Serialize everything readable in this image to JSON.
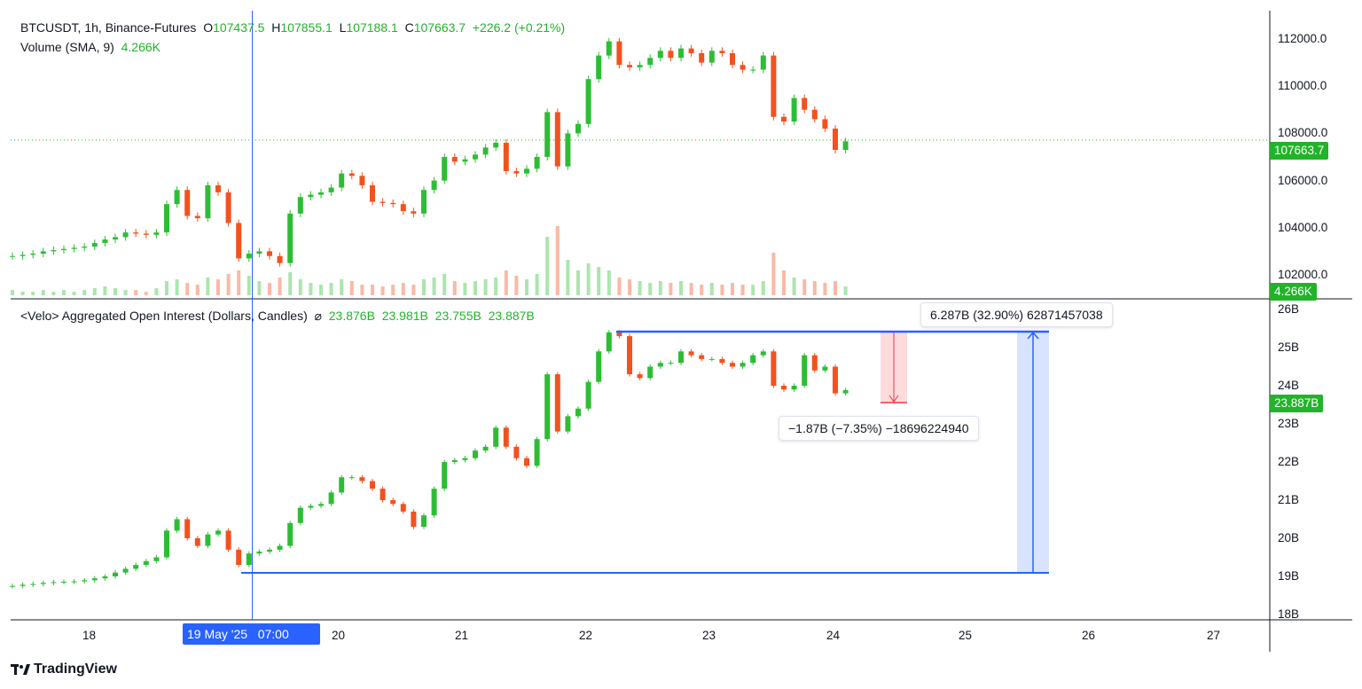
{
  "header": {
    "symbol": "BTCUSDT, 1h, Binance-Futures",
    "o_label": "O",
    "o": "107437.5",
    "h_label": "H",
    "h": "107855.1",
    "l_label": "L",
    "l": "107188.1",
    "c_label": "C",
    "c": "107663.7",
    "change": "+226.2 (+0.21%)",
    "volume_label": "Volume (SMA, 9)",
    "volume_value": "4.266K"
  },
  "oi_header": {
    "title": "<Velo> Aggregated Open Interest (Dollars, Candles)",
    "hidden_icon": "⌀",
    "values": [
      "23.876B",
      "23.981B",
      "23.755B",
      "23.887B"
    ]
  },
  "price_axis": [
    "112000.0",
    "110000.0",
    "108000.0",
    "106000.0",
    "104000.0",
    "102000.0"
  ],
  "price_tag": "107663.7",
  "volume_tag": "4.266K",
  "oi_axis": [
    "26B",
    "25B",
    "24B",
    "23B",
    "22B",
    "21B",
    "20B",
    "19B",
    "18B"
  ],
  "oi_tag": "23.887B",
  "time_axis": [
    "18",
    "19",
    "20",
    "21",
    "22",
    "23",
    "24",
    "25",
    "26",
    "27"
  ],
  "crosshair": {
    "date": "19 May '25",
    "time": "07:00"
  },
  "measure_up": "6.287B (32.90%) 62871457038",
  "measure_down": "−1.87B (−7.35%) −18696224940",
  "logo": "TradingView",
  "colors": {
    "up": "#2DBD34",
    "down": "#F4511E",
    "accent": "#2962FF",
    "tag_green": "#22B32A"
  },
  "chart_data": [
    {
      "type": "candlestick",
      "title": "BTCUSDT, 1h, Binance-Futures",
      "start": "2025-05-17T09:00",
      "interval_hours": 2,
      "ylim": [
        101500,
        112500
      ],
      "close": [
        102800,
        102850,
        102900,
        103000,
        103050,
        103100,
        103150,
        103200,
        103350,
        103500,
        103600,
        103800,
        103750,
        103700,
        103800,
        105000,
        105600,
        104500,
        104400,
        105800,
        105500,
        104200,
        102700,
        102900,
        103000,
        102800,
        102500,
        104600,
        105300,
        105400,
        105500,
        105700,
        106300,
        106200,
        105800,
        105100,
        105050,
        105000,
        104700,
        104600,
        105600,
        106000,
        107000,
        106800,
        106900,
        107100,
        107400,
        107600,
        106400,
        106300,
        106500,
        107000,
        108900,
        106600,
        108000,
        108400,
        110300,
        111300,
        111900,
        110900,
        110800,
        110900,
        111200,
        111500,
        111200,
        111600,
        111400,
        111000,
        111500,
        111400,
        110900,
        110700,
        110700,
        111300,
        108700,
        108500,
        109500,
        109000,
        108600,
        108200,
        107300,
        107663.7
      ],
      "volume_k": [
        3,
        2,
        2,
        3,
        2,
        3,
        2,
        3,
        4,
        5,
        4,
        3,
        3,
        2,
        4,
        8,
        9,
        7,
        6,
        10,
        9,
        12,
        14,
        11,
        8,
        7,
        10,
        13,
        9,
        7,
        6,
        7,
        9,
        8,
        6,
        6,
        5,
        6,
        7,
        6,
        9,
        10,
        12,
        8,
        7,
        8,
        9,
        10,
        14,
        11,
        9,
        12,
        33,
        39,
        20,
        14,
        18,
        16,
        14,
        10,
        9,
        8,
        7,
        8,
        7,
        8,
        7,
        6,
        7,
        6,
        7,
        6,
        6,
        8,
        24,
        14,
        10,
        9,
        8,
        7,
        8,
        5
      ]
    },
    {
      "type": "candlestick",
      "title": "<Velo> Aggregated Open Interest (Dollars, Candles)",
      "start": "2025-05-17T09:00",
      "interval_hours": 2,
      "unit": "B",
      "ylim": [
        17.9,
        26.2
      ],
      "close": [
        18.75,
        18.78,
        18.8,
        18.83,
        18.85,
        18.86,
        18.87,
        18.9,
        18.95,
        19.0,
        19.1,
        19.2,
        19.3,
        19.4,
        19.5,
        20.2,
        20.5,
        20.0,
        19.8,
        20.1,
        20.2,
        19.7,
        19.3,
        19.6,
        19.65,
        19.7,
        19.8,
        20.4,
        20.8,
        20.85,
        20.9,
        21.2,
        21.6,
        21.6,
        21.5,
        21.3,
        21.0,
        20.9,
        20.7,
        20.3,
        20.6,
        21.3,
        22.0,
        22.05,
        22.1,
        22.3,
        22.4,
        22.9,
        22.4,
        22.1,
        21.9,
        22.6,
        24.3,
        22.8,
        23.2,
        23.4,
        24.1,
        24.9,
        25.4,
        25.3,
        24.3,
        24.2,
        24.5,
        24.6,
        24.6,
        24.9,
        24.8,
        24.7,
        24.7,
        24.6,
        24.5,
        24.6,
        24.8,
        24.9,
        24.0,
        23.9,
        24.0,
        24.8,
        24.4,
        24.5,
        23.8,
        23.887
      ]
    }
  ]
}
